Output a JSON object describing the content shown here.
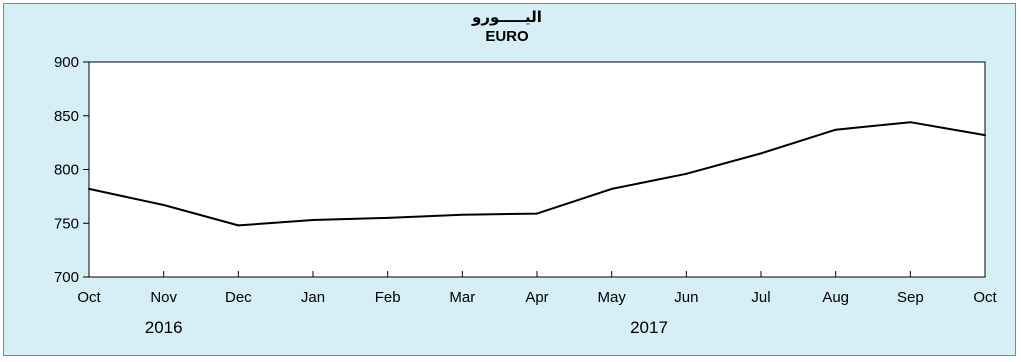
{
  "chart_data": {
    "type": "line",
    "title_ar": "اليـــــورو",
    "title": "EURO",
    "xlabel": "",
    "ylabel": "",
    "categories": [
      "Oct",
      "Nov",
      "Dec",
      "Jan",
      "Feb",
      "Mar",
      "Apr",
      "May",
      "Jun",
      "Jul",
      "Aug",
      "Sep",
      "Oct"
    ],
    "year_labels": [
      {
        "label": "2016",
        "category_index": 1
      },
      {
        "label": "2017",
        "category_index": 7.5
      }
    ],
    "series": [
      {
        "values": [
          782,
          767,
          748,
          753,
          755,
          758,
          759,
          782,
          796,
          815,
          837,
          844,
          832
        ]
      }
    ],
    "ylim": [
      700,
      900
    ],
    "yticks": [
      700,
      750,
      800,
      850,
      900
    ],
    "grid": false,
    "legend": "none",
    "colors": {
      "background": "#d6eef5",
      "plot_background": "#ffffff",
      "line": "#000000"
    }
  }
}
